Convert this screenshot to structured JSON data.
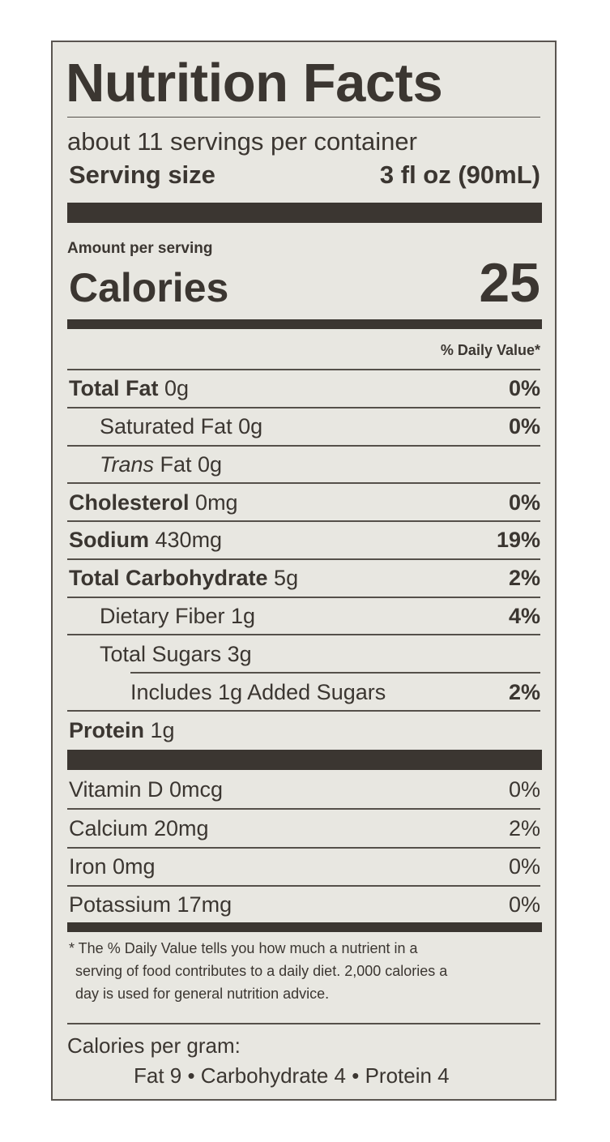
{
  "title": "Nutrition Facts",
  "servings": "about 11 servings per container",
  "serving_size": {
    "label": "Serving size",
    "value": "3 fl oz (90mL)"
  },
  "amount_per_serving": "Amount per serving",
  "calories": {
    "label": "Calories",
    "value": "25"
  },
  "daily_value_header": "% Daily Value*",
  "nutrients": [
    {
      "label": "Total Fat",
      "amount": "0g",
      "dv": "0%"
    },
    {
      "label": "Saturated Fat 0g",
      "dv": "0%"
    },
    {
      "label_italic": "Trans",
      "label": "Fat 0g"
    },
    {
      "label": "Cholesterol",
      "amount": "0mg",
      "dv": "0%"
    },
    {
      "label": "Sodium",
      "amount": "430mg",
      "dv": "19%"
    },
    {
      "label": "Total Carbohydrate",
      "amount": "5g",
      "dv": "2%"
    },
    {
      "label": "Dietary Fiber 1g",
      "dv": "4%"
    },
    {
      "label": "Total Sugars 3g"
    },
    {
      "label": "Includes 1g Added Sugars",
      "dv": "2%"
    },
    {
      "label": "Protein",
      "amount": "1g"
    }
  ],
  "vitamins": [
    {
      "label": "Vitamin D 0mcg",
      "dv": "0%"
    },
    {
      "label": "Calcium 20mg",
      "dv": "2%"
    },
    {
      "label": "Iron 0mg",
      "dv": "0%"
    },
    {
      "label": "Potassium 17mg",
      "dv": "0%"
    }
  ],
  "footnote": [
    "* The % Daily Value tells you how much a nutrient in a",
    "serving of food contributes to a daily diet. 2,000 calories a",
    "day is used for general nutrition advice."
  ],
  "calories_per_gram": {
    "label": "Calories per gram:",
    "values": "Fat 9 • Carbohydrate 4 • Protein 4"
  }
}
